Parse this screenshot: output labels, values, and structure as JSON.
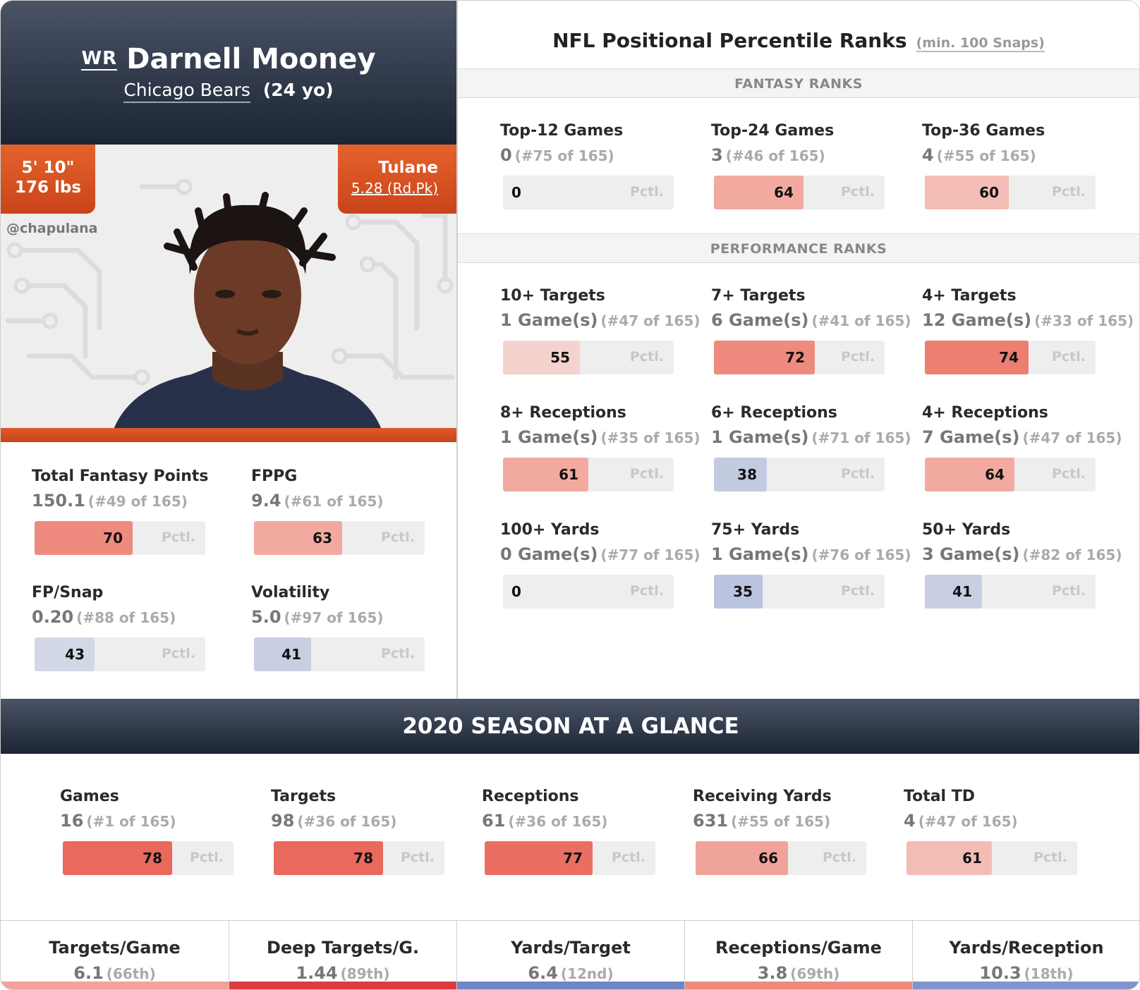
{
  "player": {
    "position": "WR",
    "name": "Darnell Mooney",
    "team": "Chicago Bears",
    "age": "(24 yo)",
    "height": "5' 10\"",
    "weight": "176 lbs",
    "college": "Tulane",
    "draft": "5.28 (Rd.Pk)",
    "credit": "@chapulana"
  },
  "pctl_label": "Pctl.",
  "left_stats": [
    {
      "label": "Total Fantasy Points",
      "value": "150.1",
      "rank": "(#49 of 165)",
      "pctl": 70,
      "color": "#ee8a7e"
    },
    {
      "label": "FPPG",
      "value": "9.4",
      "rank": "(#61 of 165)",
      "pctl": 63,
      "color": "#f2aaa0"
    },
    {
      "label": "FP/Snap",
      "value": "0.20",
      "rank": "(#88 of 165)",
      "pctl": 43,
      "color": "#d3d8e6"
    },
    {
      "label": "Volatility",
      "value": "5.0",
      "rank": "(#97 of 165)",
      "pctl": 41,
      "color": "#c8cfe2"
    }
  ],
  "right": {
    "title": "NFL Positional Percentile Ranks",
    "subtitle": "(min. 100 Snaps)",
    "fantasy_section": "FANTASY RANKS",
    "performance_section": "PERFORMANCE RANKS",
    "fantasy": [
      {
        "label": "Top-12 Games",
        "value": "0",
        "rank": "(#75 of 165)",
        "pctl": 0,
        "color": "#eeeeee"
      },
      {
        "label": "Top-24 Games",
        "value": "3",
        "rank": "(#46 of 165)",
        "pctl": 64,
        "color": "#f2aaa0"
      },
      {
        "label": "Top-36 Games",
        "value": "4",
        "rank": "(#55 of 165)",
        "pctl": 60,
        "color": "#f3bdb5"
      }
    ],
    "performance": [
      {
        "label": "10+ Targets",
        "value": "1 Game(s)",
        "rank": "(#47 of 165)",
        "pctl": 55,
        "color": "#f4d2cd"
      },
      {
        "label": "7+ Targets",
        "value": "6 Game(s)",
        "rank": "(#41 of 165)",
        "pctl": 72,
        "color": "#ee8a7e"
      },
      {
        "label": "4+ Targets",
        "value": "12 Game(s)",
        "rank": "(#33 of 165)",
        "pctl": 74,
        "color": "#ec7f72"
      },
      {
        "label": "8+ Receptions",
        "value": "1 Game(s)",
        "rank": "(#35 of 165)",
        "pctl": 61,
        "color": "#f2aaa0"
      },
      {
        "label": "6+ Receptions",
        "value": "1 Game(s)",
        "rank": "(#71 of 165)",
        "pctl": 38,
        "color": "#c3cbe0"
      },
      {
        "label": "4+ Receptions",
        "value": "7 Game(s)",
        "rank": "(#47 of 165)",
        "pctl": 64,
        "color": "#f2aaa0"
      },
      {
        "label": "100+ Yards",
        "value": "0 Game(s)",
        "rank": "(#77 of 165)",
        "pctl": 0,
        "color": "#eeeeee"
      },
      {
        "label": "75+ Yards",
        "value": "1 Game(s)",
        "rank": "(#76 of 165)",
        "pctl": 35,
        "color": "#bac4de"
      },
      {
        "label": "50+ Yards",
        "value": "3 Game(s)",
        "rank": "(#82 of 165)",
        "pctl": 41,
        "color": "#c8cfe2"
      }
    ]
  },
  "season": {
    "title": "2020 SEASON AT A GLANCE",
    "stats": [
      {
        "label": "Games",
        "value": "16",
        "rank": "(#1 of 165)",
        "pctl": 78,
        "color": "#e9695c"
      },
      {
        "label": "Targets",
        "value": "98",
        "rank": "(#36 of 165)",
        "pctl": 78,
        "color": "#e9695c"
      },
      {
        "label": "Receptions",
        "value": "61",
        "rank": "(#36 of 165)",
        "pctl": 77,
        "color": "#ea6f62"
      },
      {
        "label": "Receiving Yards",
        "value": "631",
        "rank": "(#55 of 165)",
        "pctl": 66,
        "color": "#f0a399"
      },
      {
        "label": "Total TD",
        "value": "4",
        "rank": "(#47 of 165)",
        "pctl": 61,
        "color": "#f3bdb5"
      }
    ]
  },
  "bottom": [
    {
      "label": "Targets/Game",
      "value": "6.1",
      "rank": "(66th)",
      "color": "#f0a399"
    },
    {
      "label": "Deep Targets/G.",
      "value": "1.44",
      "rank": "(89th)",
      "color": "#dc3b3f"
    },
    {
      "label": "Yards/Target",
      "value": "6.4",
      "rank": "(12nd)",
      "color": "#6d86c4"
    },
    {
      "label": "Receptions/Game",
      "value": "3.8",
      "rank": "(69th)",
      "color": "#ee8a7e"
    },
    {
      "label": "Yards/Reception",
      "value": "10.3",
      "rank": "(18th)",
      "color": "#7f95cb"
    }
  ]
}
